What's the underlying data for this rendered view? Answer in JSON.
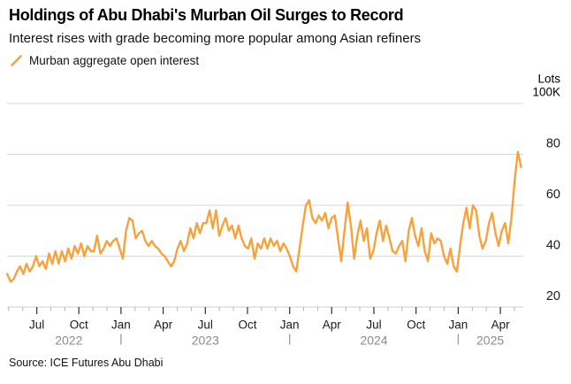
{
  "header": {
    "title": "Holdings of Abu Dhabi's Murban Oil Surges to Record",
    "subtitle": "Interest rises with grade becoming more popular among Asian refiners"
  },
  "legend": {
    "label": "Murban aggregate open interest"
  },
  "source": "Source: ICE Futures Abu Dhabi",
  "colors": {
    "line": "#F8A23C",
    "grid": "#D7D7D7",
    "axis_line": "#CFCFCF",
    "minor_tick": "#B3B3B3",
    "major_tick": "#2F2F2F",
    "month_label": "#1A1A1A",
    "year_label": "#8A8A8A",
    "y_label": "#1A1A1A",
    "unit_label": "#000000",
    "year_separator": "#9A9A9A"
  },
  "chart_data": {
    "type": "line",
    "title": "Holdings of Abu Dhabi's Murban Oil Surges to Record",
    "subtitle": "Interest rises with grade becoming more popular among Asian refiners",
    "unit_lines": [
      "Lots",
      "100K"
    ],
    "ylim": [
      20,
      100
    ],
    "gridline_values": [
      20,
      40,
      60,
      80,
      100
    ],
    "ytick_labels": [
      {
        "value": 20,
        "label": "20"
      },
      {
        "value": 40,
        "label": "40"
      },
      {
        "value": 60,
        "label": "60"
      },
      {
        "value": 80,
        "label": "80"
      }
    ],
    "xlim": [
      2022.324,
      2025.386
    ],
    "month_ticks": [
      {
        "t": 2022.5,
        "label": "Jul"
      },
      {
        "t": 2022.75,
        "label": "Oct"
      },
      {
        "t": 2023.0,
        "label": "Jan"
      },
      {
        "t": 2023.25,
        "label": "Apr"
      },
      {
        "t": 2023.5,
        "label": "Jul"
      },
      {
        "t": 2023.75,
        "label": "Oct"
      },
      {
        "t": 2024.0,
        "label": "Jan"
      },
      {
        "t": 2024.25,
        "label": "Apr"
      },
      {
        "t": 2024.5,
        "label": "Jul"
      },
      {
        "t": 2024.75,
        "label": "Oct"
      },
      {
        "t": 2025.0,
        "label": "Jan"
      },
      {
        "t": 2025.25,
        "label": "Apr"
      }
    ],
    "year_labels": [
      {
        "t": 2022.69,
        "label": "2022"
      },
      {
        "t": 2023.5,
        "label": "2023"
      },
      {
        "t": 2024.5,
        "label": "2024"
      },
      {
        "t": 2025.19,
        "label": "2025"
      }
    ],
    "year_separators_t": [
      2023.0,
      2024.0,
      2025.0
    ],
    "series": [
      {
        "name": "Murban aggregate open interest",
        "color": "#F8A23C",
        "t_start": 2022.325,
        "t_step": 0.01905,
        "values": [
          33,
          30,
          31,
          34,
          36,
          33,
          37,
          34,
          36,
          40,
          36,
          38,
          35,
          41,
          37,
          42,
          37,
          42,
          38,
          43,
          39,
          44,
          41,
          45,
          40,
          44,
          42,
          42,
          48,
          41,
          43,
          46,
          44,
          46,
          47,
          43,
          39,
          50,
          55,
          54,
          47,
          49,
          50,
          46,
          44,
          46,
          44,
          43,
          41,
          40,
          38,
          36,
          38,
          43,
          46,
          42,
          45,
          51,
          47,
          53,
          49,
          53,
          53,
          58,
          51,
          58,
          48,
          52,
          55,
          50,
          52,
          47,
          52,
          47,
          44,
          43,
          47,
          39,
          45,
          43,
          47,
          43,
          47,
          44,
          46,
          42,
          45,
          43,
          40,
          36,
          34,
          43,
          52,
          60,
          62,
          55,
          53,
          56,
          54,
          57,
          51,
          55,
          56,
          47,
          38,
          50,
          61,
          52,
          39,
          48,
          54,
          46,
          51,
          39,
          42,
          49,
          54,
          46,
          52,
          47,
          42,
          41,
          44,
          46,
          38,
          50,
          55,
          48,
          44,
          51,
          42,
          38,
          49,
          45,
          47,
          46,
          40,
          37,
          43,
          36,
          34,
          44,
          53,
          59,
          51,
          60,
          58,
          48,
          43,
          46,
          53,
          57,
          49,
          44,
          50,
          53,
          45,
          55,
          70,
          81,
          75
        ]
      }
    ]
  }
}
